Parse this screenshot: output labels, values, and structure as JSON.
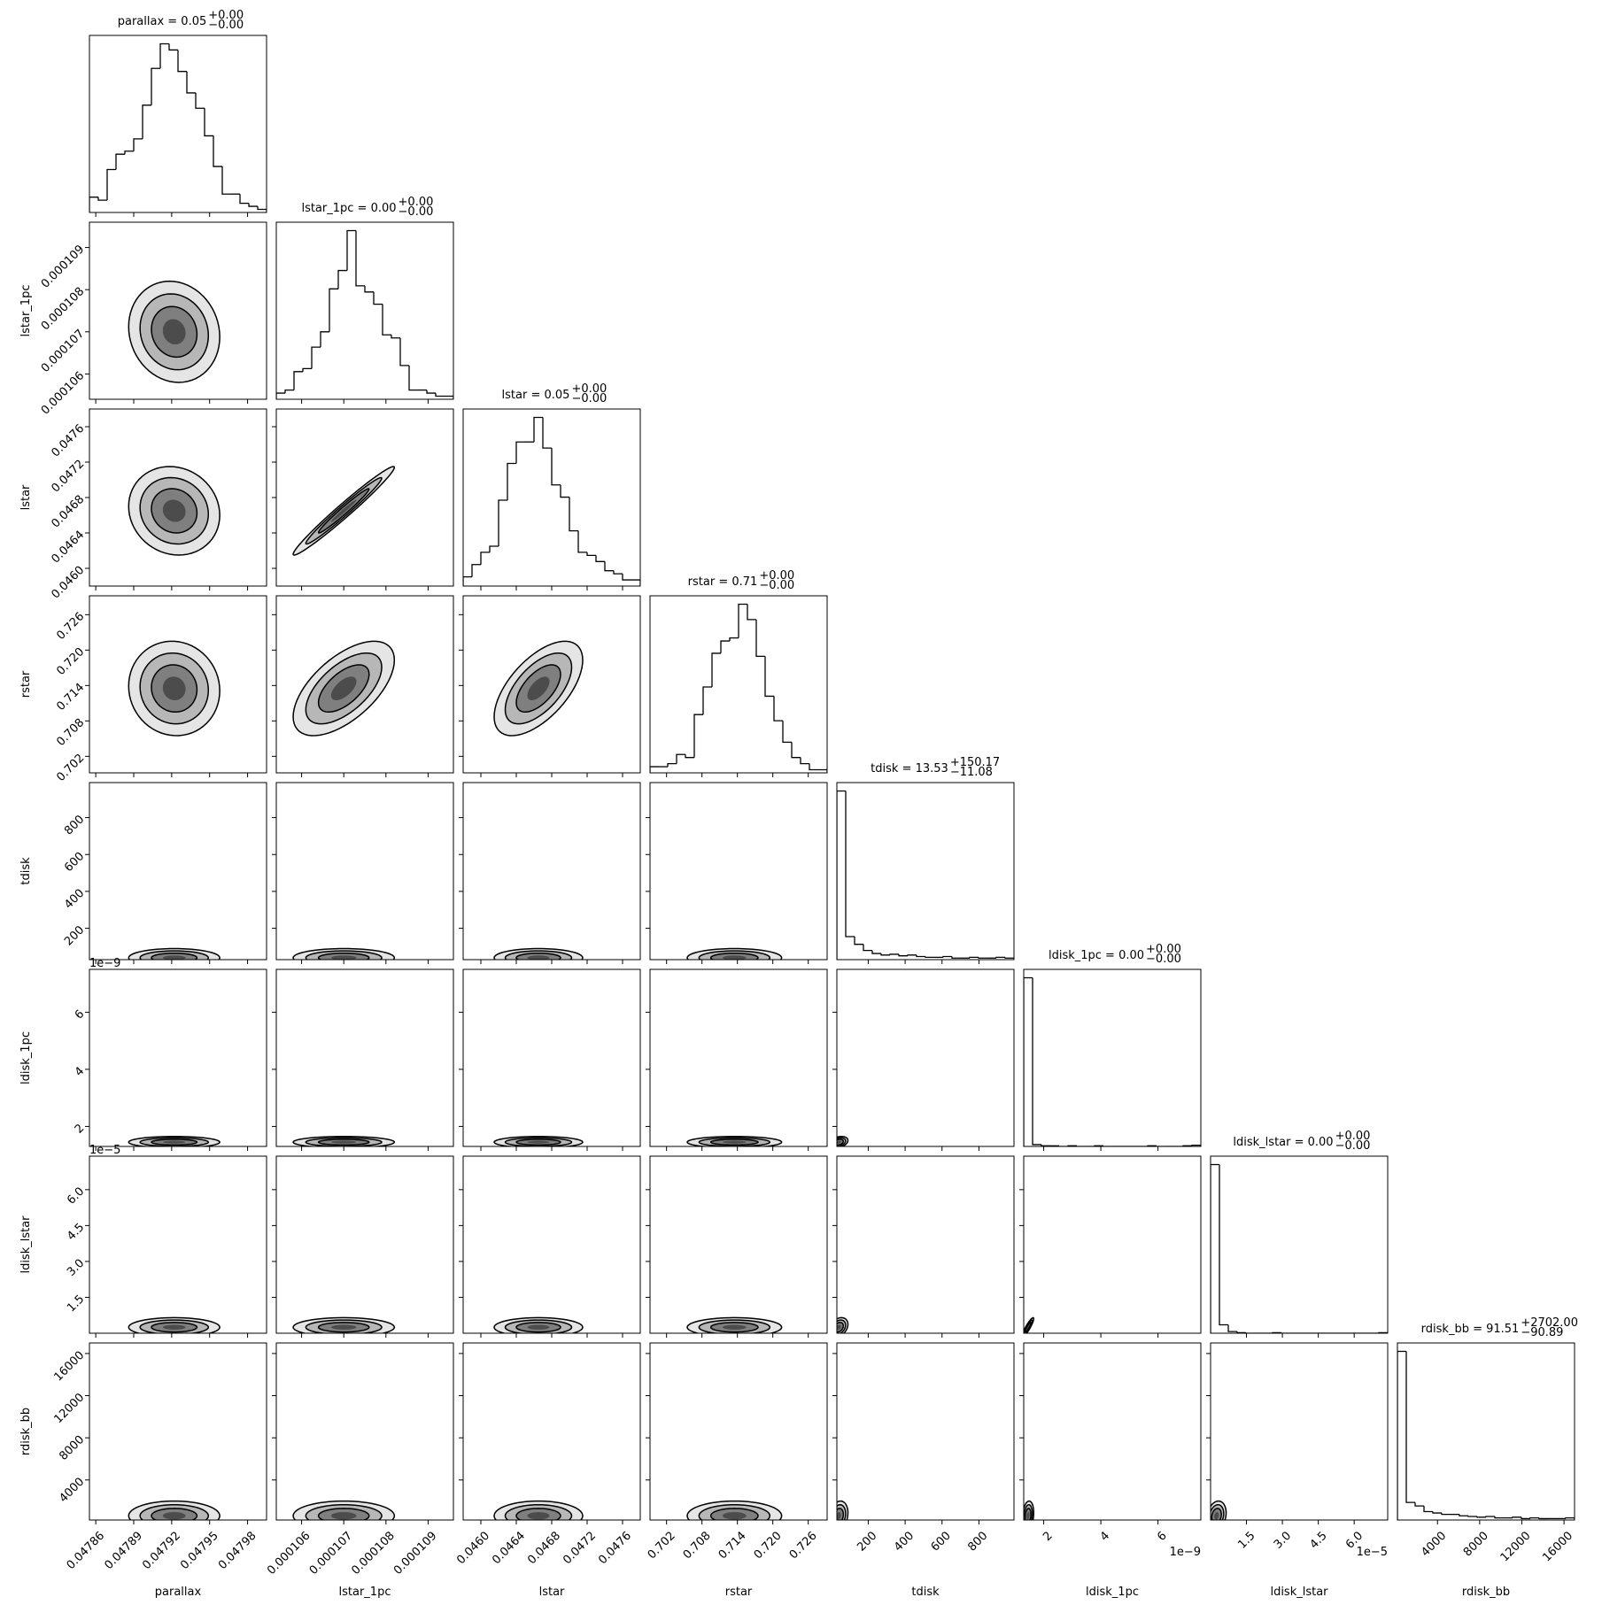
{
  "chart_data": {
    "type": "corner",
    "params": [
      {
        "label": "parallax",
        "title": "parallax = 0.05",
        "title_plus": "+0.00",
        "title_minus": "−0.00",
        "lim": [
          0.047855,
          0.047995
        ],
        "ticks": [
          0.04786,
          0.04789,
          0.04792,
          0.04795,
          0.04798
        ],
        "bins": [
          0.047855,
          0.047862,
          0.047869,
          0.047876,
          0.047883,
          0.04789,
          0.047897,
          0.047904,
          0.047911,
          0.047918,
          0.047925,
          0.047932,
          0.047939,
          0.047946,
          0.047953,
          0.04796,
          0.047967,
          0.047974,
          0.047981,
          0.047988,
          0.047995
        ],
        "counts": [
          5,
          4,
          14,
          19,
          20,
          24,
          35,
          47,
          55,
          53,
          46,
          39,
          34,
          25,
          15,
          6,
          6,
          3,
          2,
          1
        ],
        "center": 0.047922,
        "spread": 1.8e-05
      },
      {
        "label": "lstar_1pc",
        "title": "lstar_1pc = 0.00",
        "title_plus": "+0.00",
        "title_minus": "−0.00",
        "lim": [
          0.0001054,
          0.0001096
        ],
        "ticks": [
          0.000106,
          0.000107,
          0.000108,
          0.000109
        ],
        "bins": [
          0.0001054,
          0.00010561,
          0.00010582,
          0.00010603,
          0.00010624,
          0.00010645,
          0.00010666,
          0.00010687,
          0.00010708,
          0.00010729,
          0.0001075,
          0.00010771,
          0.00010792,
          0.00010813,
          0.00010834,
          0.00010855,
          0.00010876,
          0.00010897,
          0.00010918,
          0.00010939,
          0.0001096
        ],
        "counts": [
          2,
          3,
          9,
          10,
          17,
          22,
          36,
          42,
          55,
          37,
          35,
          31,
          21,
          20,
          11,
          3,
          3,
          2,
          1,
          1
        ],
        "center": 0.000107,
        "spread": 6e-07
      },
      {
        "label": "lstar",
        "title": "lstar = 0.05",
        "title_plus": "+0.00",
        "title_minus": "−0.00",
        "lim": [
          0.0458,
          0.0478
        ],
        "ticks": [
          {
            "value": 0.046,
            "label": "0.0460"
          },
          0.0464,
          0.0468,
          0.0472,
          0.0476
        ],
        "bins": [
          0.0458,
          0.0459,
          0.046,
          0.0461,
          0.0462,
          0.0463,
          0.0464,
          0.0465,
          0.0466,
          0.0467,
          0.0468,
          0.0469,
          0.047,
          0.0471,
          0.0472,
          0.0473,
          0.0474,
          0.0475,
          0.0476,
          0.0477,
          0.0478
        ],
        "counts": [
          3,
          7,
          11,
          13,
          28,
          40,
          47,
          47,
          55,
          45,
          33,
          29,
          18,
          11,
          10,
          8,
          5,
          4,
          2,
          2
        ],
        "center": 0.04665,
        "spread": 0.00025
      },
      {
        "label": "rstar",
        "title": "rstar = 0.71",
        "title_plus": "+0.00",
        "title_minus": "−0.00",
        "lim": [
          0.6992,
          0.7292
        ],
        "ticks": [
          0.702,
          0.708,
          0.714,
          {
            "value": 0.72,
            "label": "0.720"
          },
          0.726
        ],
        "bins": [
          0.6992,
          0.7007,
          0.7022,
          0.7037,
          0.7052,
          0.7067,
          0.7082,
          0.7097,
          0.7112,
          0.7127,
          0.7142,
          0.7157,
          0.7172,
          0.7187,
          0.7202,
          0.7217,
          0.7232,
          0.7247,
          0.7262,
          0.7277,
          0.7292
        ],
        "counts": [
          2,
          2,
          3,
          6,
          5,
          19,
          28,
          39,
          43,
          44,
          55,
          50,
          38,
          25,
          17,
          10,
          5,
          3,
          1,
          1
        ],
        "center": 0.7135,
        "spread": 0.004
      },
      {
        "label": "tdisk",
        "title": "tdisk = 13.53",
        "title_plus": "+150.17",
        "title_minus": "−11.08",
        "lim": [
          30,
          990
        ],
        "ticks": [
          200,
          400,
          600,
          800
        ],
        "bins": [
          30,
          78,
          126,
          174,
          222,
          270,
          318,
          366,
          414,
          462,
          510,
          558,
          606,
          654,
          702,
          750,
          798,
          846,
          894,
          942,
          990
        ],
        "counts": [
          220,
          30,
          20,
          12,
          8,
          6,
          7,
          5,
          6,
          4,
          3,
          3,
          4,
          2,
          2,
          3,
          2,
          2,
          3,
          2
        ],
        "center": 40,
        "spread": 25
      },
      {
        "label": "ldisk_1pc",
        "title": "ldisk_1pc = 0.00",
        "title_plus": "+0.00",
        "title_minus": "−0.00",
        "offset_label": "1e−9",
        "lim": [
          1.3e-09,
          7.5e-09
        ],
        "ticks": [
          {
            "value": 2e-09,
            "label": "2"
          },
          {
            "value": 4e-09,
            "label": "4"
          },
          {
            "value": 6e-09,
            "label": "6"
          }
        ],
        "bins": [
          1.3e-09,
          1.61e-09,
          1.92e-09,
          2.23e-09,
          2.54e-09,
          2.85e-09,
          3.16e-09,
          3.47e-09,
          3.78e-09,
          4.09e-09,
          4.4e-09,
          4.71e-09,
          5.02e-09,
          5.33e-09,
          5.64e-09,
          5.95e-09,
          6.26e-09,
          6.57e-09,
          6.88e-09,
          7.19e-09,
          7.5e-09
        ],
        "counts": [
          280,
          3,
          1,
          1,
          0,
          1,
          0,
          0,
          1,
          0,
          0,
          0,
          0,
          0,
          1,
          0,
          0,
          0,
          1,
          2
        ],
        "center": 1.45e-09,
        "spread": 1e-10
      },
      {
        "label": "ldisk_lstar",
        "title": "ldisk_lstar = 0.00",
        "title_plus": "+0.00",
        "title_minus": "−0.00",
        "offset_label": "1e−5",
        "lim": [
          0,
          7.4e-05
        ],
        "ticks": [
          {
            "value": 1.5e-05,
            "label": "1.5"
          },
          {
            "value": 3e-05,
            "label": "3.0"
          },
          {
            "value": 4.5e-05,
            "label": "4.5"
          },
          {
            "value": 6e-05,
            "label": "6.0"
          }
        ],
        "bins": [
          0,
          3.7e-06,
          7.4e-06,
          1.11e-05,
          1.48e-05,
          1.85e-05,
          2.22e-05,
          2.59e-05,
          2.96e-05,
          3.33e-05,
          3.7e-05,
          4.07e-05,
          4.44e-05,
          4.81e-05,
          5.18e-05,
          5.55e-05,
          5.92e-05,
          6.29e-05,
          6.66e-05,
          7.03e-05,
          7.4e-05
        ],
        "counts": [
          300,
          15,
          3,
          1,
          0,
          0,
          0,
          1,
          0,
          0,
          0,
          0,
          0,
          0,
          0,
          0,
          0,
          0,
          0,
          1
        ],
        "center": 2.5e-06,
        "spread": 2e-06
      },
      {
        "label": "rdisk_bb",
        "title": "rdisk_bb = 91.51",
        "title_plus": "+2702.00",
        "title_minus": "−90.89",
        "lim": [
          200,
          17000
        ],
        "ticks": [
          4000,
          8000,
          12000,
          16000
        ],
        "bins": [
          200,
          1040,
          1880,
          2720,
          3560,
          4400,
          5240,
          6080,
          6920,
          7760,
          8600,
          9440,
          10280,
          11120,
          11960,
          12800,
          13640,
          14480,
          15320,
          16160,
          17000
        ],
        "counts": [
          240,
          25,
          20,
          12,
          10,
          8,
          8,
          6,
          5,
          4,
          5,
          3,
          3,
          4,
          2,
          3,
          2,
          2,
          2,
          3
        ],
        "center": 600,
        "spread": 700
      }
    ],
    "correlation": [
      [
        -0.1
      ],
      [
        -0.1,
        0.98
      ],
      [
        -0.05,
        0.6,
        0.6
      ],
      [
        0,
        0,
        0,
        0
      ],
      [
        0,
        0,
        0,
        0,
        0.3
      ],
      [
        0,
        0,
        0,
        0,
        0.3,
        0.9
      ],
      [
        0,
        0,
        0,
        0,
        0.2,
        0.2,
        0.2
      ]
    ]
  }
}
